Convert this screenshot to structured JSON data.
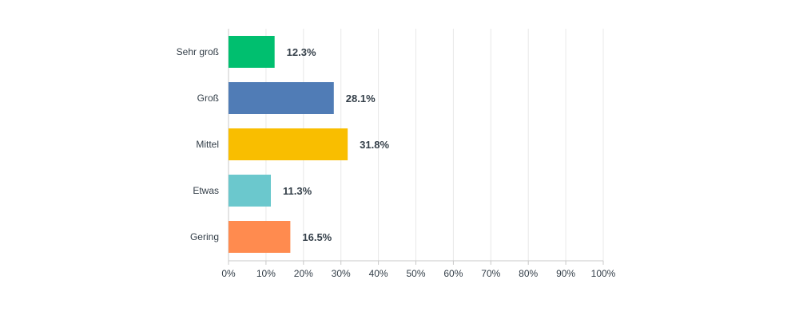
{
  "chart_data": {
    "type": "bar",
    "orientation": "horizontal",
    "categories": [
      "Sehr groß",
      "Groß",
      "Mittel",
      "Etwas",
      "Gering"
    ],
    "values": [
      12.3,
      28.1,
      31.8,
      11.3,
      16.5
    ],
    "value_labels": [
      "12.3%",
      "28.1%",
      "31.8%",
      "11.3%",
      "16.5%"
    ],
    "colors": [
      "#00bf6f",
      "#507cb6",
      "#f9be00",
      "#6bc8cd",
      "#ff8b4f"
    ],
    "xlim": [
      0,
      100
    ],
    "x_ticks": [
      0,
      10,
      20,
      30,
      40,
      50,
      60,
      70,
      80,
      90,
      100
    ],
    "x_tick_labels": [
      "0%",
      "10%",
      "20%",
      "30%",
      "40%",
      "50%",
      "60%",
      "70%",
      "80%",
      "90%",
      "100%"
    ],
    "grid": true,
    "title": "",
    "xlabel": "",
    "ylabel": ""
  }
}
